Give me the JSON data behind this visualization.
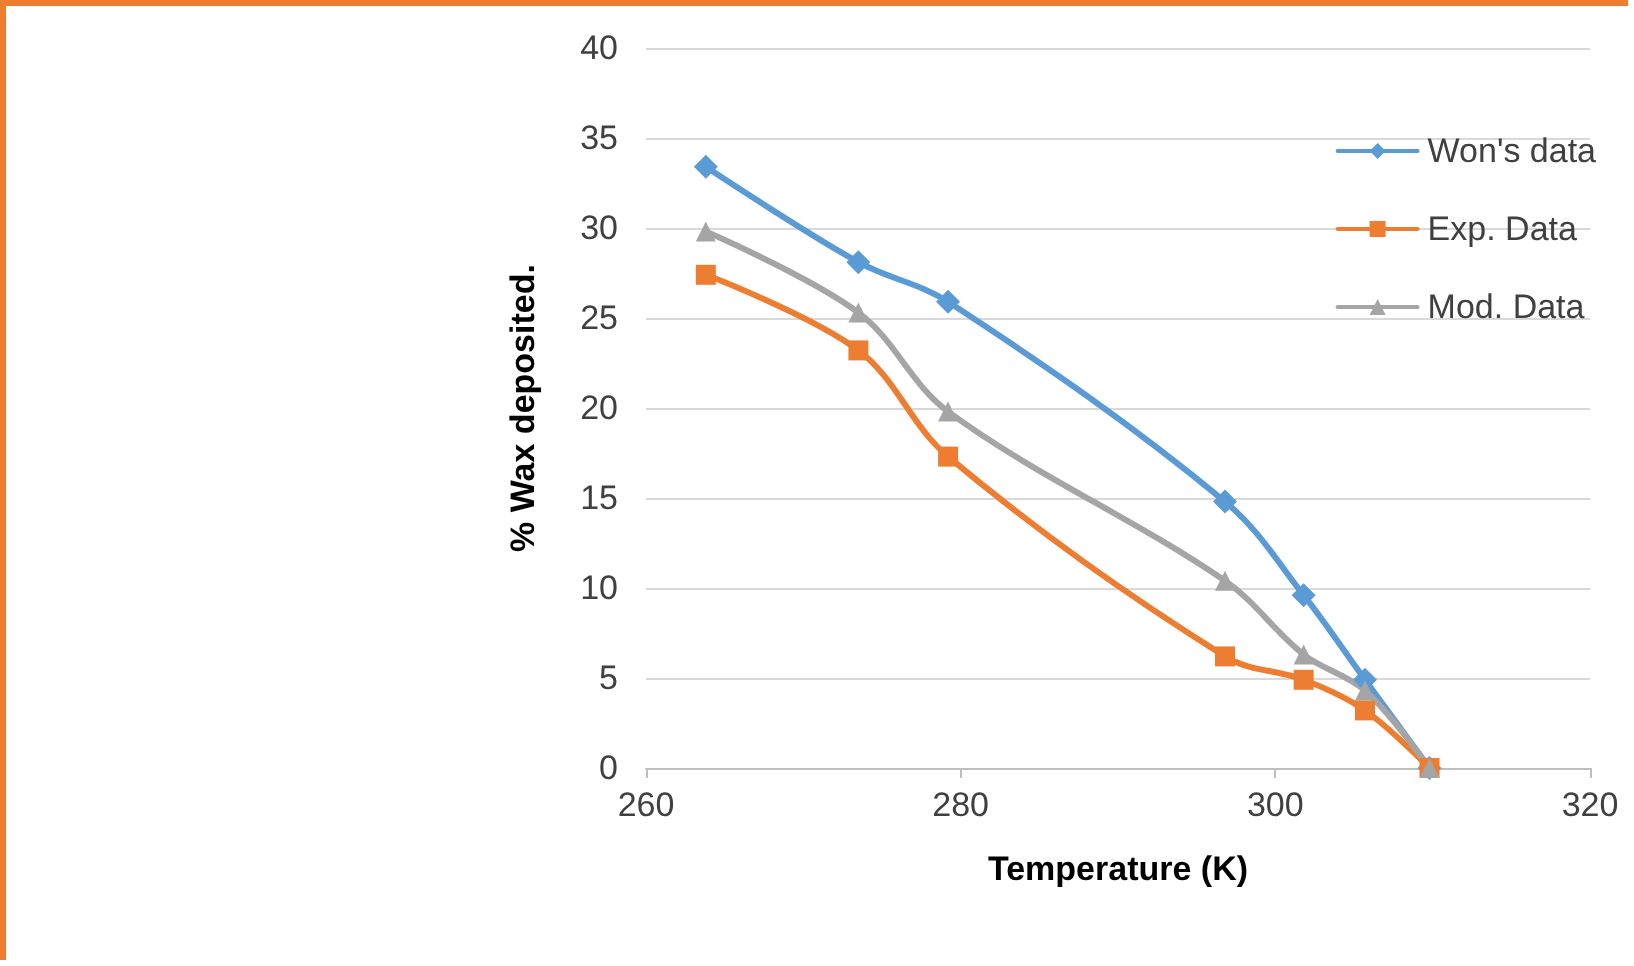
{
  "chart_data": {
    "type": "line",
    "xlabel": "Temperature (K)",
    "ylabel": "% Wax deposited.",
    "x": [
      263.8,
      273.5,
      279.2,
      296.8,
      301.8,
      305.7,
      309.8
    ],
    "series": [
      {
        "name": "Won's data",
        "color": "#5b9bd5",
        "marker": "diamond",
        "values": [
          33.4,
          28.1,
          25.9,
          14.8,
          9.6,
          4.9,
          0
        ]
      },
      {
        "name": "Exp. Data",
        "color": "#ed7d31",
        "marker": "square",
        "values": [
          27.4,
          23.2,
          17.3,
          6.2,
          4.9,
          3.2,
          0
        ]
      },
      {
        "name": "Mod. Data",
        "color": "#a5a5a5",
        "marker": "triangle",
        "values": [
          29.8,
          25.3,
          19.8,
          10.4,
          6.3,
          4.3,
          0
        ]
      }
    ],
    "xlim": [
      260,
      320
    ],
    "xticks": [
      260,
      280,
      300,
      320
    ],
    "ylim": [
      0,
      40
    ],
    "yticks": [
      0,
      5,
      10,
      15,
      20,
      25,
      30,
      35,
      40
    ],
    "grid": "y",
    "legend": "top right",
    "line_style": "solid"
  }
}
